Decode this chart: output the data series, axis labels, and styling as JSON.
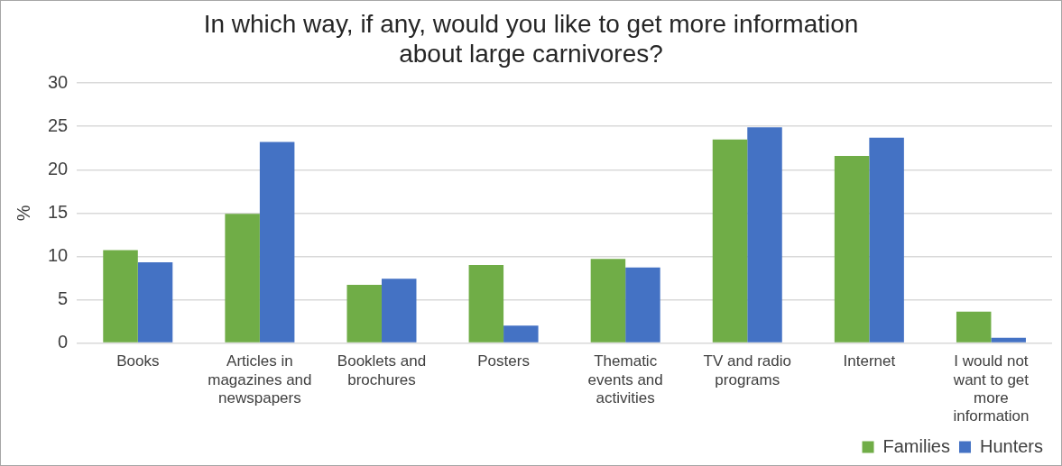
{
  "chart_data": {
    "type": "bar",
    "title": "In which way, if any, would you like to get more information about large carnivores?",
    "ylabel": "%",
    "categories": [
      "Books",
      "Articles in magazines and newspapers",
      "Booklets and brochures",
      "Posters",
      "Thematic events and activities",
      "TV and radio programs",
      "Internet",
      "I would not want to get more information"
    ],
    "series": [
      {
        "name": "Families",
        "color": "#70ad47",
        "values": [
          10.7,
          14.9,
          6.7,
          9.0,
          9.7,
          23.5,
          21.6,
          3.6
        ]
      },
      {
        "name": "Hunters",
        "color": "#4472c4",
        "values": [
          9.3,
          23.2,
          7.4,
          2.0,
          8.7,
          24.9,
          23.7,
          0.6
        ]
      }
    ],
    "ylim": [
      0,
      30
    ],
    "yticks": [
      0,
      5,
      10,
      15,
      20,
      25,
      30
    ],
    "grid": "y",
    "legend": "bottom right"
  }
}
